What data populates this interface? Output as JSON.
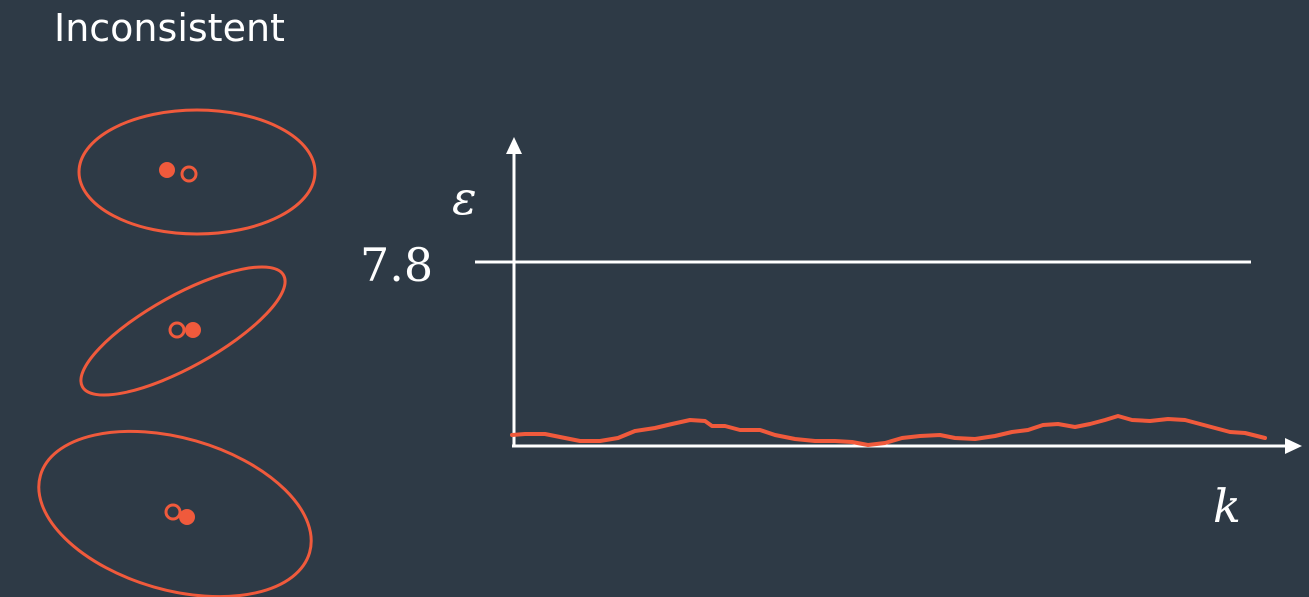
{
  "title": "Inconsistent",
  "plot": {
    "y_axis_label": "ε",
    "x_axis_label": "k",
    "threshold_label": "7.8",
    "threshold_value": 7.8
  },
  "colors": {
    "background": "#2e3a46",
    "accent": "#f05a3c",
    "axis": "#ffffff"
  }
}
